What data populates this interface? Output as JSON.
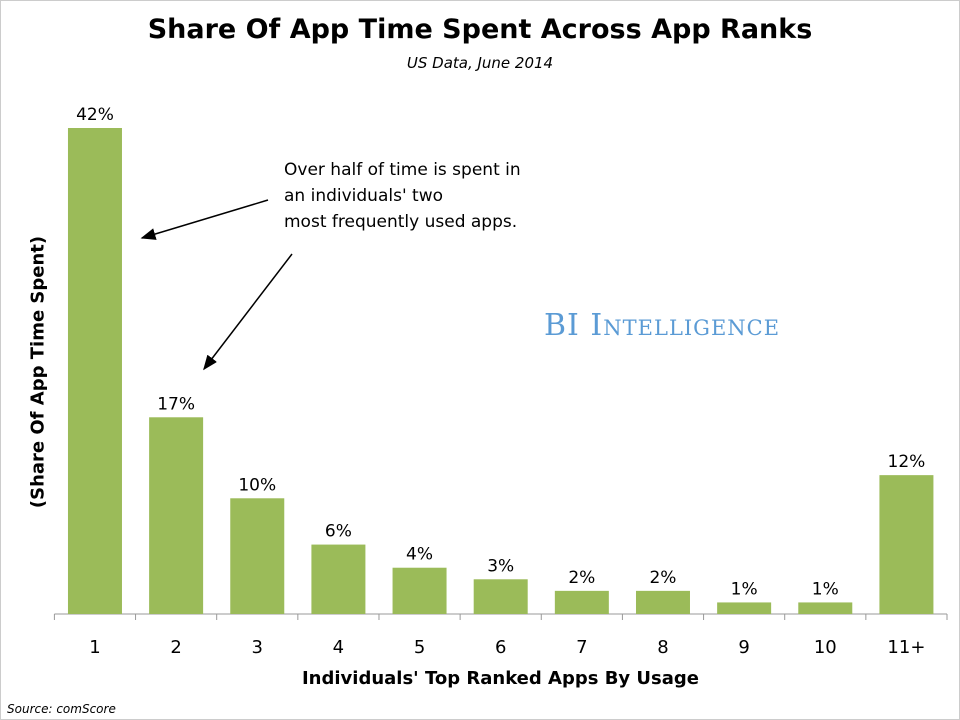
{
  "chart_data": {
    "type": "bar",
    "title": "Share Of App Time Spent Across App Ranks",
    "subtitle": "US Data, June 2014",
    "xlabel": "Individuals' Top Ranked Apps By Usage",
    "ylabel": "(Share Of App Time Spent)",
    "categories": [
      "1",
      "2",
      "3",
      "4",
      "5",
      "6",
      "7",
      "8",
      "9",
      "10",
      "11+"
    ],
    "values": [
      42,
      17,
      10,
      6,
      4,
      3,
      2,
      2,
      1,
      1,
      12
    ],
    "data_labels": [
      "42%",
      "17%",
      "10%",
      "6%",
      "4%",
      "3%",
      "2%",
      "2%",
      "1%",
      "1%",
      "12%"
    ],
    "ylim": [
      0,
      42
    ],
    "grid": false,
    "bar_color": "#9bbb59",
    "annotation": [
      "Over half of time is spent in",
      "an individuals' two",
      "most frequently used apps."
    ],
    "source": "Source: comScore",
    "watermark": "BI Intelligence"
  }
}
